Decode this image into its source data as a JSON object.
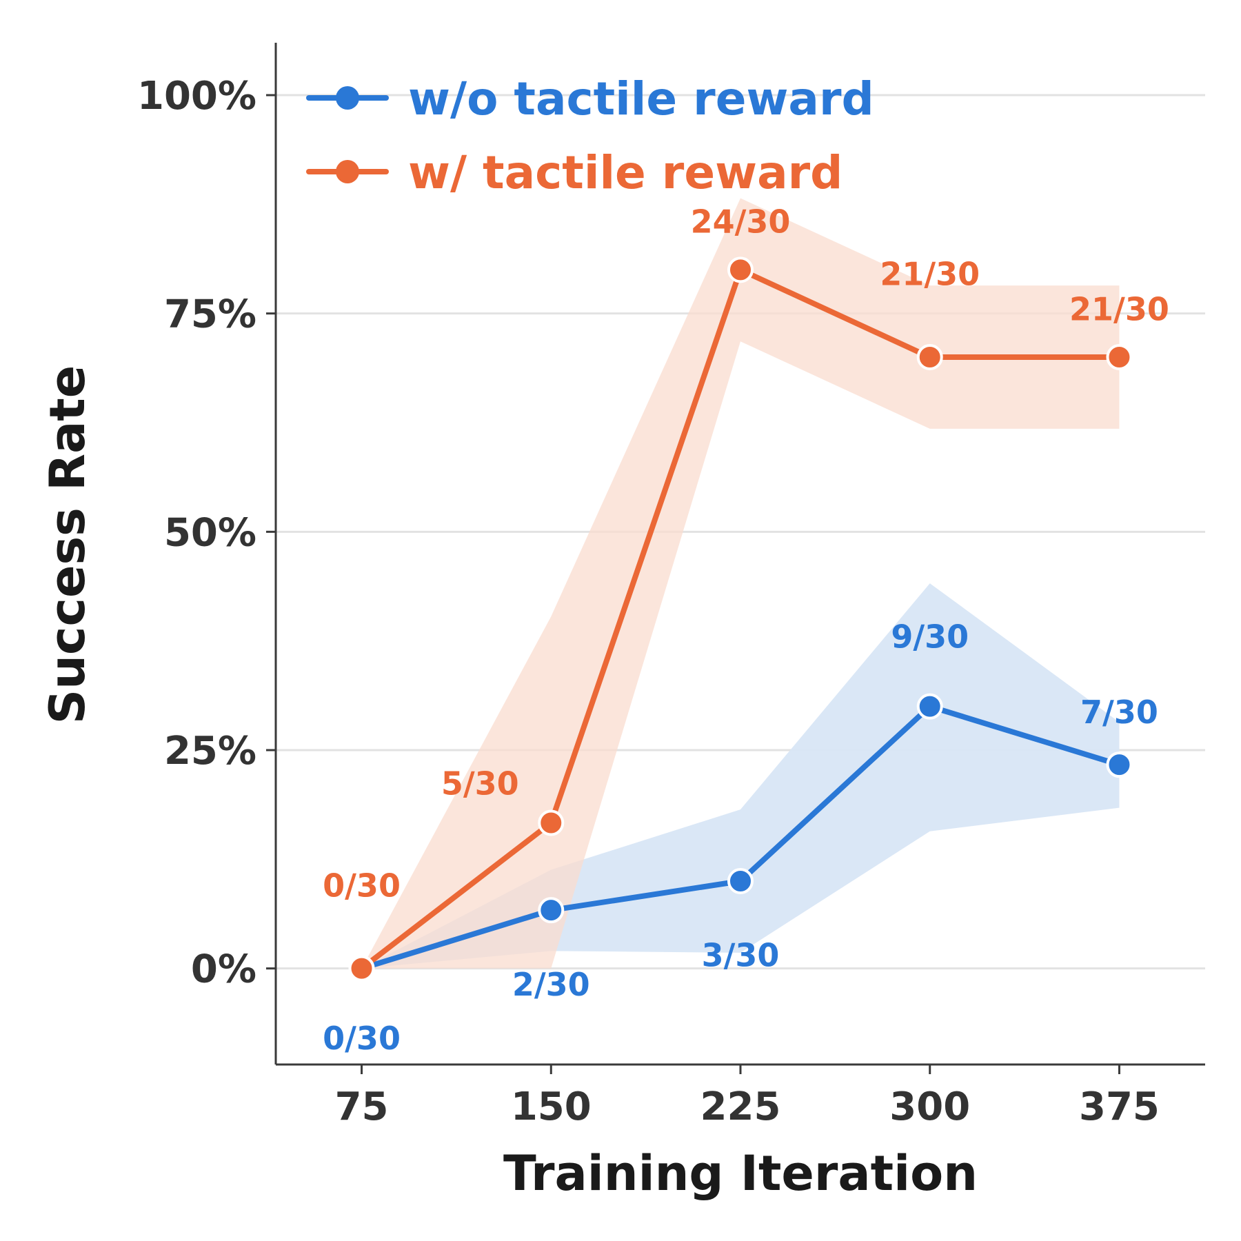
{
  "chart_data": {
    "type": "line",
    "title": "",
    "xlabel": "Training Iteration",
    "ylabel": "Success Rate",
    "x": [
      75,
      150,
      225,
      300,
      375
    ],
    "x_tick_labels": [
      "75",
      "150",
      "225",
      "300",
      "375"
    ],
    "xlim": [
      41,
      409
    ],
    "ylim": [
      -0.11,
      1.06
    ],
    "y_ticks": [
      0,
      0.25,
      0.5,
      0.75,
      1.0
    ],
    "y_tick_labels": [
      "0%",
      "25%",
      "50%",
      "75%",
      "100%"
    ],
    "grid": "horizontal",
    "legend_position": "top-left",
    "series": [
      {
        "name": "w/o tactile reward",
        "color": "#2a78d6",
        "band_color": "#d8e6f6",
        "values": [
          0,
          0.0667,
          0.1,
          0.3,
          0.2333
        ],
        "band_lower": [
          0,
          0.02,
          0.018,
          0.157,
          0.184
        ],
        "band_upper": [
          0,
          0.113,
          0.182,
          0.441,
          0.282
        ],
        "point_labels": [
          "0/30",
          "2/30",
          "3/30",
          "9/30",
          "7/30"
        ],
        "label_offsets": [
          -0.08,
          -0.085,
          -0.085,
          0.08,
          0.06
        ]
      },
      {
        "name": "w/ tactile reward",
        "color": "#eb6836",
        "band_color": "#f9dccf",
        "values": [
          0,
          0.1667,
          0.8,
          0.7,
          0.7
        ],
        "band_lower": [
          0,
          0,
          0.718,
          0.618,
          0.618
        ],
        "band_upper": [
          0,
          0.403,
          0.882,
          0.782,
          0.782
        ],
        "point_labels": [
          "0/30",
          "5/30",
          "24/30",
          "21/30",
          "21/30"
        ],
        "label_offsets": [
          0.095,
          0.045,
          0.055,
          0.095,
          0.055
        ],
        "label_x_shift": [
          0,
          -28,
          0,
          0,
          0
        ]
      }
    ]
  }
}
